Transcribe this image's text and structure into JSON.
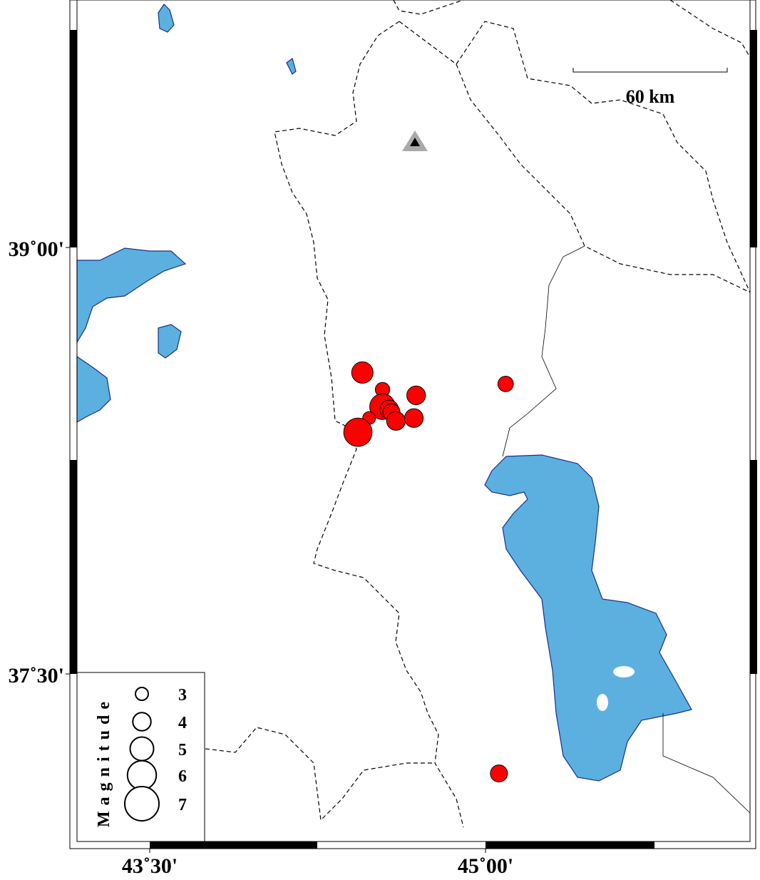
{
  "map": {
    "lat_ticks": [
      {
        "value": 39,
        "label": "39˚00'"
      },
      {
        "value": 37.5,
        "label": "37˚30'"
      }
    ],
    "lon_ticks": [
      {
        "value": 43.5,
        "label": "43˚30'"
      },
      {
        "value": 45,
        "label": "45˚00'"
      }
    ],
    "scale_label": "60 km",
    "legend": {
      "title": "Magnitude",
      "magnitudes": [
        3,
        4,
        5,
        6,
        7
      ]
    },
    "events": [
      {
        "lon": 44.45,
        "lat": 38.56,
        "mag": 4.6
      },
      {
        "lon": 44.54,
        "lat": 38.5,
        "mag": 3.3
      },
      {
        "lon": 44.69,
        "lat": 38.48,
        "mag": 4.1
      },
      {
        "lon": 44.54,
        "lat": 38.44,
        "mag": 5.4
      },
      {
        "lon": 44.57,
        "lat": 38.43,
        "mag": 4.1
      },
      {
        "lon": 44.58,
        "lat": 38.42,
        "mag": 3.8
      },
      {
        "lon": 44.6,
        "lat": 38.39,
        "mag": 4.1
      },
      {
        "lon": 44.68,
        "lat": 38.4,
        "mag": 4.1
      },
      {
        "lon": 44.48,
        "lat": 38.4,
        "mag": 3.0
      },
      {
        "lon": 44.43,
        "lat": 38.35,
        "mag": 5.9
      },
      {
        "lon": 45.09,
        "lat": 38.52,
        "mag": 3.5
      },
      {
        "lon": 45.06,
        "lat": 37.15,
        "mag": 3.8
      }
    ]
  }
}
